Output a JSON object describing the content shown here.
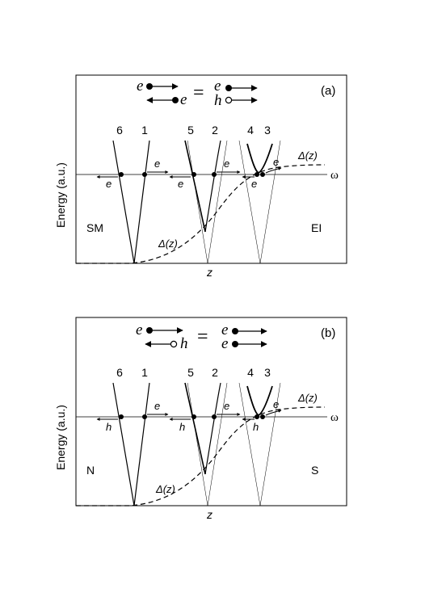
{
  "panels": [
    {
      "id": "a",
      "tag": "(a)",
      "ylabel": "Energy  (a.u.)",
      "xlabel": "z",
      "omega_label": "ω",
      "left_region": "SM",
      "right_region": "EI",
      "delta_left": "Δ(z)",
      "delta_right": "Δ(z)",
      "equation": {
        "lhs_top": "e",
        "lhs_bottom": "e",
        "eq": "=",
        "rhs_top": "e",
        "rhs_bottom": "h"
      },
      "branch_numbers": [
        "6",
        "1",
        "5",
        "2",
        "4",
        "3"
      ],
      "carriers": {
        "c6": "e",
        "c1": "e",
        "c5": "e",
        "c2": "e",
        "c4": "e",
        "c3": "e"
      }
    },
    {
      "id": "b",
      "tag": "(b)",
      "ylabel": "Energy  (a.u.)",
      "xlabel": "z",
      "omega_label": "ω",
      "left_region": "N",
      "right_region": "S",
      "delta_left": "Δ(z)",
      "delta_right": "Δ(z)",
      "equation": {
        "lhs_top": "e",
        "lhs_bottom": "h",
        "eq": "=",
        "rhs_top": "e",
        "rhs_bottom": "e"
      },
      "branch_numbers": [
        "6",
        "1",
        "5",
        "2",
        "4",
        "3"
      ],
      "carriers": {
        "c6": "h",
        "c1": "e",
        "c5": "h",
        "c2": "e",
        "c4": "h",
        "c3": "e"
      }
    }
  ]
}
